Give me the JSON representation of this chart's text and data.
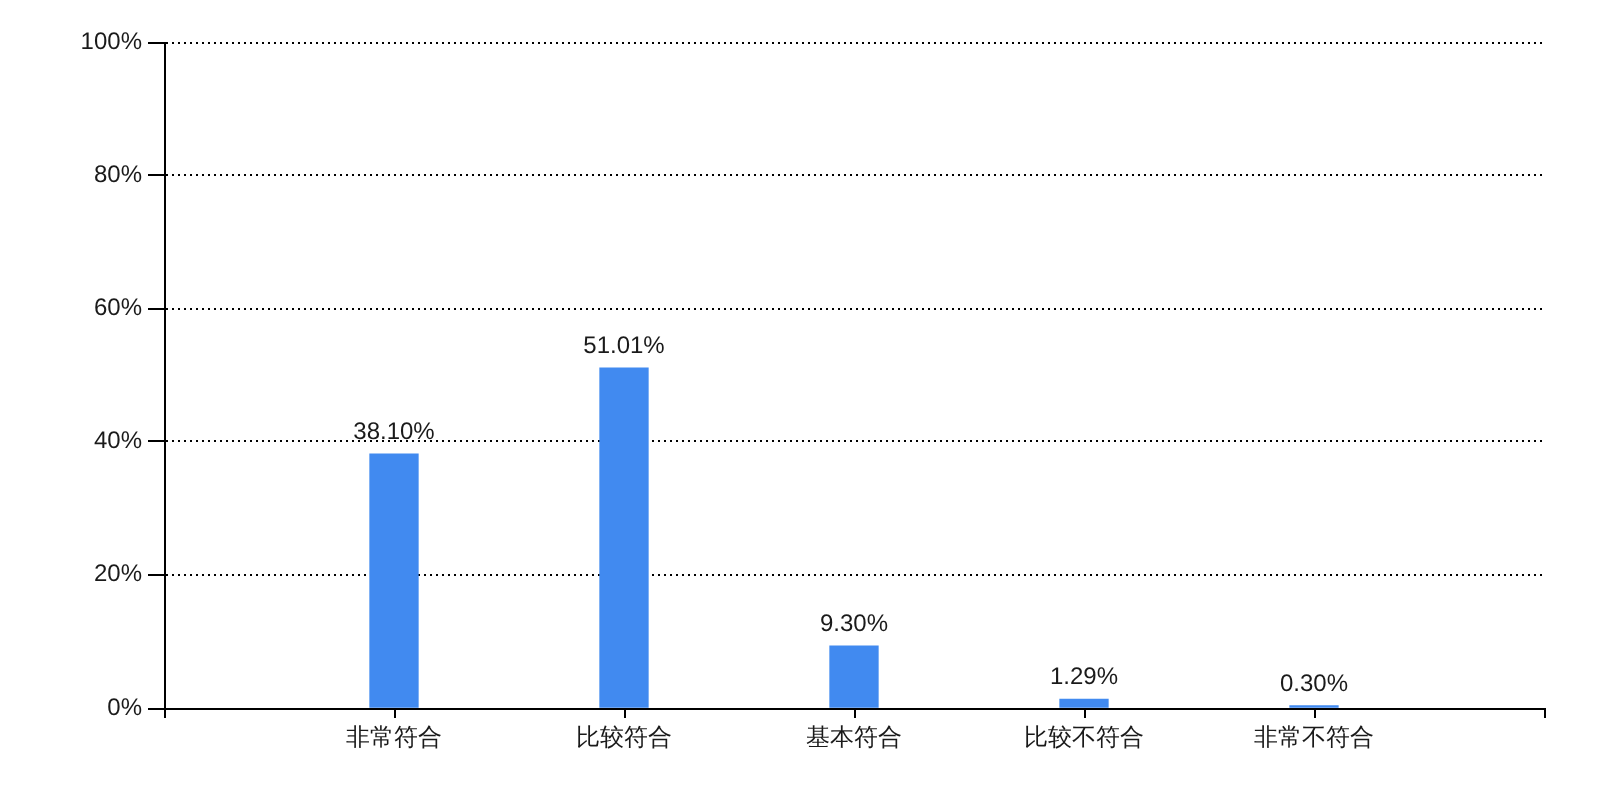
{
  "chart_data": {
    "type": "bar",
    "categories": [
      "非常符合",
      "比较符合",
      "基本符合",
      "比较不符合",
      "非常不符合"
    ],
    "values": [
      38.1,
      51.01,
      9.3,
      1.29,
      0.3
    ],
    "color": "#418af0",
    "value_labels": [
      "38.10%",
      "51.01%",
      "9.30%",
      "1.29%",
      "0.30%"
    ],
    "ylim": [
      0,
      100
    ],
    "yticks": [
      {
        "value": 0,
        "label": "0%"
      },
      {
        "value": 20,
        "label": "20%"
      },
      {
        "value": 40,
        "label": "40%"
      },
      {
        "value": 60,
        "label": "60%"
      },
      {
        "value": 80,
        "label": "80%"
      },
      {
        "value": 100,
        "label": "100%"
      }
    ],
    "grid": "y"
  }
}
